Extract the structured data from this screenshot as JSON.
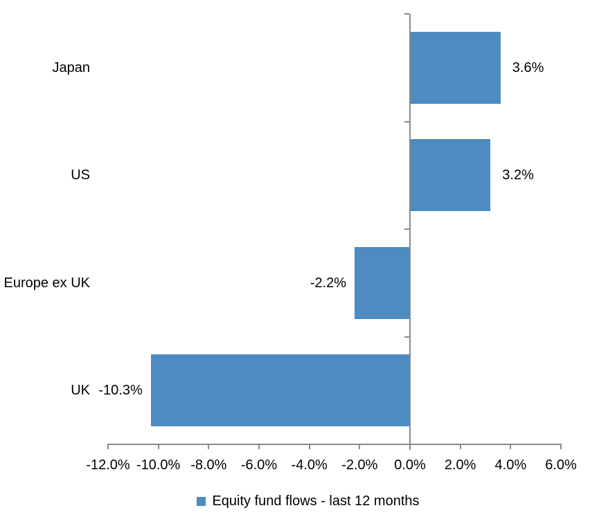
{
  "chart_data": {
    "type": "bar",
    "orientation": "horizontal",
    "title": "",
    "xlabel": "",
    "ylabel": "",
    "categories": [
      "Japan",
      "US",
      "Europe ex UK",
      "UK"
    ],
    "series": [
      {
        "name": "Equity fund flows - last 12 months",
        "values": [
          3.6,
          3.2,
          -2.2,
          -10.3
        ]
      }
    ],
    "data_labels": [
      "3.6%",
      "3.2%",
      "-2.2%",
      "-10.3%"
    ],
    "x_ticks": [
      -12,
      -10,
      -8,
      -6,
      -4,
      -2,
      0,
      2,
      4,
      6
    ],
    "x_tick_labels": [
      "-12.0%",
      "-10.0%",
      "-8.0%",
      "-6.0%",
      "-4.0%",
      "-2.0%",
      "0.0%",
      "2.0%",
      "4.0%",
      "6.0%"
    ],
    "xlim": [
      -12,
      6
    ],
    "grid": false,
    "legend_position": "bottom",
    "legend_label": "Equity fund flows - last 12 months",
    "colors": {
      "bar": "#4D8BC0",
      "axis": "#898989",
      "text": "#000000",
      "background": "#FFFFFF"
    }
  }
}
